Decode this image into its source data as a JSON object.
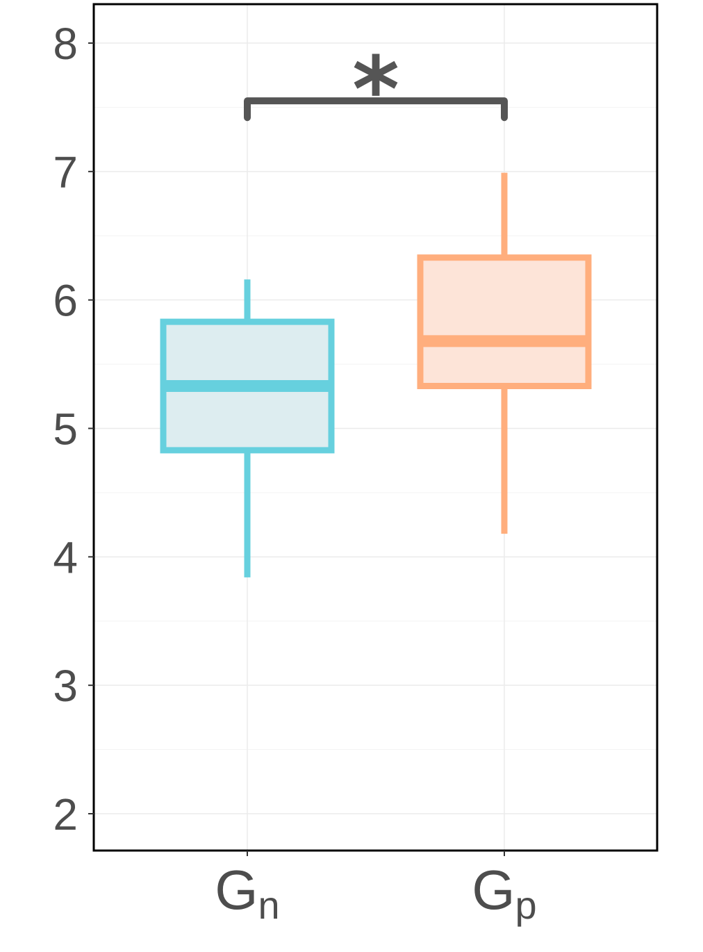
{
  "chart_data": {
    "type": "box",
    "title": "",
    "xlabel": "",
    "ylabel": "",
    "ylim": [
      1.7,
      8.3
    ],
    "yticks": [
      2,
      3,
      4,
      5,
      6,
      7,
      8
    ],
    "ytick_labels": [
      "2",
      "3",
      "4",
      "5",
      "6",
      "7",
      "8"
    ],
    "grid": true,
    "categories": [
      {
        "main": "G",
        "sub": "n"
      },
      {
        "main": "G",
        "sub": "p"
      }
    ],
    "boxes": [
      {
        "whisker_low": 3.84,
        "q1": 4.83,
        "median": 5.33,
        "q3": 5.83,
        "whisker_high": 6.16,
        "color": "#66D0DE",
        "fill": "#DDEDF0"
      },
      {
        "whisker_low": 4.18,
        "q1": 5.33,
        "median": 5.68,
        "q3": 6.33,
        "whisker_high": 6.99,
        "color": "#FFAE7D",
        "fill": "#FDE4D8"
      }
    ],
    "significance": {
      "label": "*",
      "between": [
        0,
        1
      ],
      "bracket_y": 7.55,
      "tick_bottom": 7.42,
      "color": "#555555"
    }
  }
}
